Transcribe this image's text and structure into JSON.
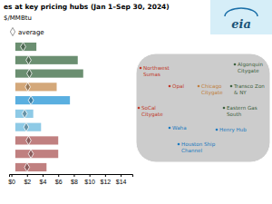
{
  "chart_data": {
    "type": "bar",
    "orientation": "horizontal",
    "title": "es at key pricing hubs (Jan 1–Sep 30, 2024)",
    "subtitle": "$/MMBtu",
    "categories": [
      null,
      null,
      null,
      null,
      null,
      null,
      null,
      null,
      null,
      null
    ],
    "min": [
      0.5,
      0.5,
      0.5,
      0.5,
      0.5,
      0.5,
      0.5,
      0.5,
      0.5,
      0.5
    ],
    "max": [
      3.2,
      8.5,
      9.2,
      5.8,
      7.5,
      2.8,
      3.8,
      6.0,
      6.0,
      4.5
    ],
    "values": [
      1.5,
      2.2,
      2.3,
      2.1,
      2.5,
      1.7,
      1.9,
      2.2,
      2.5,
      2.0
    ],
    "colors": [
      "#6b8f71",
      "#6b8f71",
      "#6b8f71",
      "#d4a87a",
      "#5aafe0",
      "#8ecae6",
      "#8ecae6",
      "#c08080",
      "#c08080",
      "#c08080"
    ],
    "xlim": [
      -0.3,
      15.5
    ],
    "xticks": [
      {
        "value": 0,
        "label": "$0"
      },
      {
        "value": 2,
        "label": "$2"
      },
      {
        "value": 4,
        "label": "$4"
      },
      {
        "value": 6,
        "label": "$6"
      },
      {
        "value": 8,
        "label": "$8"
      },
      {
        "value": 10,
        "label": "$10"
      },
      {
        "value": 12,
        "label": "$12"
      },
      {
        "value": 14,
        "label": "$14"
      }
    ],
    "tick_labels": "x",
    "grid": false,
    "annotations": [
      {
        "text": "average",
        "color": "black"
      },
      {
        "text": "eia",
        "color": "#1a5276"
      },
      {
        "text": "Northwest\nSumas",
        "color": "#c0392b"
      },
      {
        "text": "Opal",
        "color": "#c0392b"
      },
      {
        "text": "SoCal\nCitygate",
        "color": "#c0392b"
      },
      {
        "text": "Chicago\nCitygate",
        "color": "#c08040"
      },
      {
        "text": "Waha",
        "color": "#1a7abf"
      },
      {
        "text": "Houston Ship\nChannel",
        "color": "#1a7abf"
      },
      {
        "text": "Henry Hub",
        "color": "#1a7abf"
      },
      {
        "text": "Algonquin\nCitygate",
        "color": "#3d6140"
      },
      {
        "text": "Transco Zon\n& NY",
        "color": "#3d6140"
      },
      {
        "text": "Eastern Gas\nSouth",
        "color": "#3d6140"
      }
    ]
  }
}
